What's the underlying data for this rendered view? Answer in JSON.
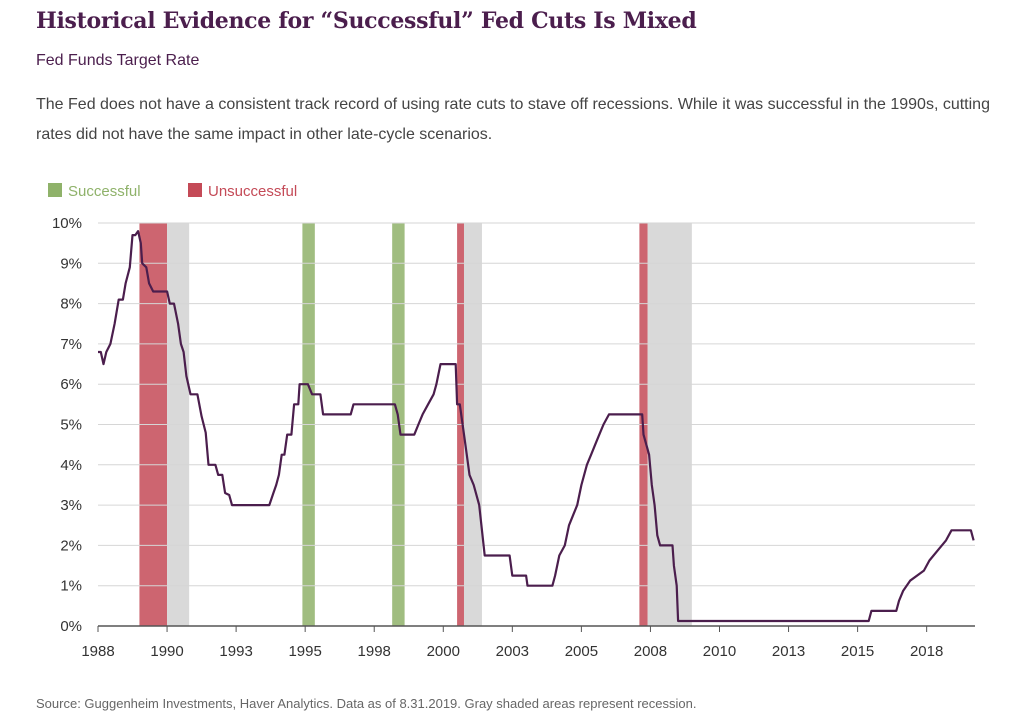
{
  "title": "Historical Evidence for “Successful” Fed Cuts Is Mixed",
  "subtitle": "Fed Funds Target Rate",
  "description": "The Fed does not have a consistent track record of using rate cuts to stave off recessions. While it was successful in the 1990s, cutting rates did not have the same impact in other late-cycle scenarios.",
  "source": "Source: Guggenheim Investments, Haver Analytics. Data as of 8.31.2019. Gray shaded areas represent recession.",
  "chart_data": {
    "type": "line",
    "legend": [
      {
        "label": "Successful",
        "color": "#8fb26a"
      },
      {
        "label": "Unsuccessful",
        "color": "#c44a57"
      }
    ],
    "legend_placement": "top-left",
    "line_color": "#4b1e4d",
    "grid": true,
    "xlim": [
      1988,
      2019.75
    ],
    "ylim": [
      0,
      10
    ],
    "x_ticks": [
      {
        "value": 1988,
        "label": "1988"
      },
      {
        "value": 1990.5,
        "label": "1990"
      },
      {
        "value": 1993,
        "label": "1993"
      },
      {
        "value": 1995.5,
        "label": "1995"
      },
      {
        "value": 1998,
        "label": "1998"
      },
      {
        "value": 2000.5,
        "label": "2000"
      },
      {
        "value": 2003,
        "label": "2003"
      },
      {
        "value": 2005.5,
        "label": "2005"
      },
      {
        "value": 2008,
        "label": "2008"
      },
      {
        "value": 2010.5,
        "label": "2010"
      },
      {
        "value": 2013,
        "label": "2013"
      },
      {
        "value": 2015.5,
        "label": "2015"
      },
      {
        "value": 2018,
        "label": "2018"
      }
    ],
    "y_ticks": [
      {
        "value": 0,
        "label": "0%"
      },
      {
        "value": 1,
        "label": "1%"
      },
      {
        "value": 2,
        "label": "2%"
      },
      {
        "value": 3,
        "label": "3%"
      },
      {
        "value": 4,
        "label": "4%"
      },
      {
        "value": 5,
        "label": "5%"
      },
      {
        "value": 6,
        "label": "6%"
      },
      {
        "value": 7,
        "label": "7%"
      },
      {
        "value": 8,
        "label": "8%"
      },
      {
        "value": 9,
        "label": "9%"
      },
      {
        "value": 10,
        "label": "10%"
      }
    ],
    "bands": [
      {
        "kind": "unsuccessful",
        "start": 1989.5,
        "end": 1990.5,
        "color": "#c44a57"
      },
      {
        "kind": "recession",
        "start": 1990.5,
        "end": 1991.3,
        "color": "#d9d9d9"
      },
      {
        "kind": "successful",
        "start": 1995.4,
        "end": 1995.85,
        "color": "#8fb26a"
      },
      {
        "kind": "successful",
        "start": 1998.65,
        "end": 1999.1,
        "color": "#8fb26a"
      },
      {
        "kind": "unsuccessful",
        "start": 2001.0,
        "end": 2001.25,
        "color": "#c44a57"
      },
      {
        "kind": "recession",
        "start": 2001.25,
        "end": 2001.9,
        "color": "#d9d9d9"
      },
      {
        "kind": "unsuccessful",
        "start": 2007.6,
        "end": 2007.9,
        "color": "#c44a57"
      },
      {
        "kind": "recession",
        "start": 2007.9,
        "end": 2009.5,
        "color": "#d9d9d9"
      }
    ],
    "series": [
      {
        "values": [
          [
            1988.0,
            6.8
          ],
          [
            1988.1,
            6.8
          ],
          [
            1988.2,
            6.5
          ],
          [
            1988.3,
            6.8
          ],
          [
            1988.45,
            7.0
          ],
          [
            1988.6,
            7.5
          ],
          [
            1988.75,
            8.1
          ],
          [
            1988.9,
            8.1
          ],
          [
            1989.0,
            8.5
          ],
          [
            1989.15,
            8.9
          ],
          [
            1989.25,
            9.7
          ],
          [
            1989.35,
            9.7
          ],
          [
            1989.45,
            9.8
          ],
          [
            1989.55,
            9.5
          ],
          [
            1989.6,
            9.0
          ],
          [
            1989.75,
            8.9
          ],
          [
            1989.85,
            8.5
          ],
          [
            1990.0,
            8.3
          ],
          [
            1990.5,
            8.3
          ],
          [
            1990.6,
            8.0
          ],
          [
            1990.75,
            8.0
          ],
          [
            1990.9,
            7.5
          ],
          [
            1991.0,
            7.0
          ],
          [
            1991.1,
            6.8
          ],
          [
            1991.2,
            6.2
          ],
          [
            1991.35,
            5.75
          ],
          [
            1991.6,
            5.75
          ],
          [
            1991.75,
            5.2
          ],
          [
            1991.9,
            4.8
          ],
          [
            1992.0,
            4.0
          ],
          [
            1992.25,
            4.0
          ],
          [
            1992.35,
            3.75
          ],
          [
            1992.5,
            3.75
          ],
          [
            1992.6,
            3.3
          ],
          [
            1992.75,
            3.25
          ],
          [
            1992.85,
            3.0
          ],
          [
            1994.2,
            3.0
          ],
          [
            1994.35,
            3.3
          ],
          [
            1994.45,
            3.5
          ],
          [
            1994.55,
            3.75
          ],
          [
            1994.65,
            4.25
          ],
          [
            1994.75,
            4.25
          ],
          [
            1994.85,
            4.75
          ],
          [
            1995.0,
            4.75
          ],
          [
            1995.1,
            5.5
          ],
          [
            1995.25,
            5.5
          ],
          [
            1995.3,
            6.0
          ],
          [
            1995.6,
            6.0
          ],
          [
            1995.75,
            5.75
          ],
          [
            1996.05,
            5.75
          ],
          [
            1996.15,
            5.25
          ],
          [
            1997.15,
            5.25
          ],
          [
            1997.25,
            5.5
          ],
          [
            1998.75,
            5.5
          ],
          [
            1998.85,
            5.25
          ],
          [
            1998.95,
            4.75
          ],
          [
            1999.45,
            4.75
          ],
          [
            1999.6,
            5.0
          ],
          [
            1999.75,
            5.25
          ],
          [
            1999.95,
            5.5
          ],
          [
            2000.15,
            5.75
          ],
          [
            2000.25,
            6.0
          ],
          [
            2000.4,
            6.5
          ],
          [
            2000.95,
            6.5
          ],
          [
            2001.0,
            5.5
          ],
          [
            2001.1,
            5.5
          ],
          [
            2001.2,
            5.0
          ],
          [
            2001.3,
            4.5
          ],
          [
            2001.45,
            3.75
          ],
          [
            2001.6,
            3.5
          ],
          [
            2001.8,
            3.0
          ],
          [
            2002.0,
            1.75
          ],
          [
            2002.9,
            1.75
          ],
          [
            2003.0,
            1.25
          ],
          [
            2003.5,
            1.25
          ],
          [
            2003.55,
            1.0
          ],
          [
            2004.45,
            1.0
          ],
          [
            2004.55,
            1.25
          ],
          [
            2004.7,
            1.75
          ],
          [
            2004.9,
            2.0
          ],
          [
            2005.05,
            2.5
          ],
          [
            2005.2,
            2.75
          ],
          [
            2005.35,
            3.0
          ],
          [
            2005.5,
            3.5
          ],
          [
            2005.7,
            4.0
          ],
          [
            2005.85,
            4.25
          ],
          [
            2006.0,
            4.5
          ],
          [
            2006.15,
            4.75
          ],
          [
            2006.3,
            5.0
          ],
          [
            2006.5,
            5.25
          ],
          [
            2007.7,
            5.25
          ],
          [
            2007.75,
            4.75
          ],
          [
            2007.85,
            4.5
          ],
          [
            2007.95,
            4.25
          ],
          [
            2008.05,
            3.5
          ],
          [
            2008.15,
            3.0
          ],
          [
            2008.25,
            2.25
          ],
          [
            2008.35,
            2.0
          ],
          [
            2008.8,
            2.0
          ],
          [
            2008.85,
            1.5
          ],
          [
            2008.95,
            1.0
          ],
          [
            2009.0,
            0.125
          ],
          [
            2015.9,
            0.125
          ],
          [
            2016.0,
            0.375
          ],
          [
            2016.9,
            0.375
          ],
          [
            2017.0,
            0.625
          ],
          [
            2017.15,
            0.875
          ],
          [
            2017.4,
            1.125
          ],
          [
            2017.9,
            1.375
          ],
          [
            2018.1,
            1.625
          ],
          [
            2018.4,
            1.875
          ],
          [
            2018.7,
            2.125
          ],
          [
            2018.9,
            2.375
          ],
          [
            2019.6,
            2.375
          ],
          [
            2019.7,
            2.125
          ]
        ]
      }
    ]
  }
}
